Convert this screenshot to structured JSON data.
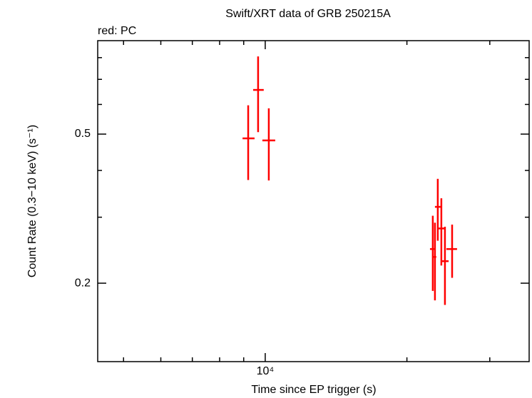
{
  "chart_data": {
    "type": "scatter",
    "title": "Swift/XRT data of GRB 250215A",
    "annotation": "red: PC",
    "x_label": "Time since EP trigger (s)",
    "y_label": "Count Rate (0.3−10 keV) (s⁻¹)",
    "xscale": "log",
    "yscale": "log",
    "xlim": [
      4406,
      36370
    ],
    "ylim": [
      0.1235,
      0.888
    ],
    "xticks": [
      {
        "value": 10000,
        "label": "10⁴"
      }
    ],
    "xminorticks": [
      5000,
      6000,
      7000,
      8000,
      9000,
      20000,
      30000
    ],
    "yticks": [
      0.2,
      0.5
    ],
    "yminorticks": [
      0.3,
      0.4,
      0.6,
      0.7,
      0.8
    ],
    "series": [
      {
        "name": "PC",
        "color": "#ff0000",
        "x": [
          9200,
          9657,
          10176,
          22700,
          22940,
          23260,
          23670,
          24090,
          24950
        ],
        "xerr": [
          [
            250,
            290
          ],
          [
            230,
            270
          ],
          [
            315,
            325
          ],
          [
            310,
            320
          ],
          [
            150,
            150
          ],
          [
            320,
            410
          ],
          [
            410,
            460
          ],
          [
            420,
            440
          ],
          [
            690,
            610
          ]
        ],
        "y": [
          0.487,
          0.656,
          0.481,
          0.2467,
          0.235,
          0.3197,
          0.28,
          0.229,
          0.2467
        ],
        "yerr": [
          0.11,
          0.15,
          0.105,
          0.056,
          0.055,
          0.06,
          0.057,
          0.054,
          0.04
        ]
      }
    ]
  }
}
